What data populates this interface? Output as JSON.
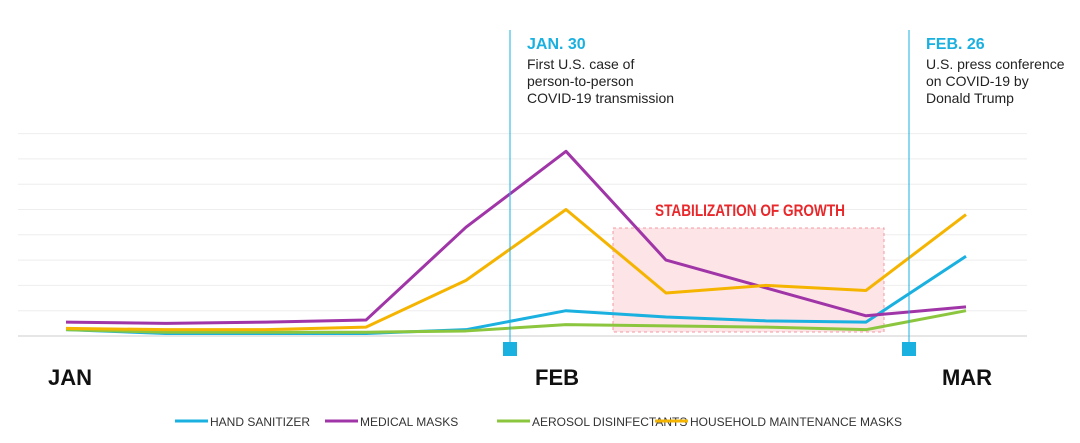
{
  "chart_data": {
    "type": "line",
    "categories": [
      "",
      "",
      "",
      "",
      "",
      "",
      "",
      "",
      "",
      ""
    ],
    "x_tick_labels": [
      "JAN",
      "FEB",
      "MAR"
    ],
    "ylim": [
      0,
      8
    ],
    "grid": true,
    "legend_placement": "bottom",
    "series": [
      {
        "name": "HAND SANITIZER",
        "color": "#1ab0e0",
        "values": [
          0.25,
          0.1,
          0.1,
          0.1,
          0.25,
          1.0,
          0.75,
          0.6,
          0.55,
          3.15
        ]
      },
      {
        "name": "MEDICAL MASKS",
        "color": "#a035a8",
        "values": [
          0.55,
          0.5,
          0.55,
          0.63,
          4.3,
          7.3,
          3.0,
          1.9,
          0.8,
          1.15
        ]
      },
      {
        "name": "AEROSOL DISINFECTANTS",
        "color": "#8cc63f",
        "values": [
          0.25,
          0.15,
          0.15,
          0.15,
          0.2,
          0.45,
          0.4,
          0.35,
          0.25,
          1.0
        ]
      },
      {
        "name": "HOUSEHOLD MAINTENANCE MASKS",
        "color": "#f5b400",
        "values": [
          0.3,
          0.25,
          0.25,
          0.35,
          2.2,
          5.0,
          1.7,
          2.0,
          1.8,
          4.8
        ]
      }
    ],
    "annotations": [
      {
        "date": "JAN. 30",
        "text": [
          "First U.S. case of",
          "person-to-person",
          "COVID-19 transmission"
        ]
      },
      {
        "date": "FEB. 26",
        "text": [
          "U.S. press conference",
          "on COVID-19 by",
          "Donald Trump"
        ]
      }
    ],
    "region_label": "STABILIZATION OF GROWTH",
    "colors": {
      "annotation": "#1ab0e0",
      "region": "#e8282b",
      "grid": "#eeeeee"
    }
  }
}
